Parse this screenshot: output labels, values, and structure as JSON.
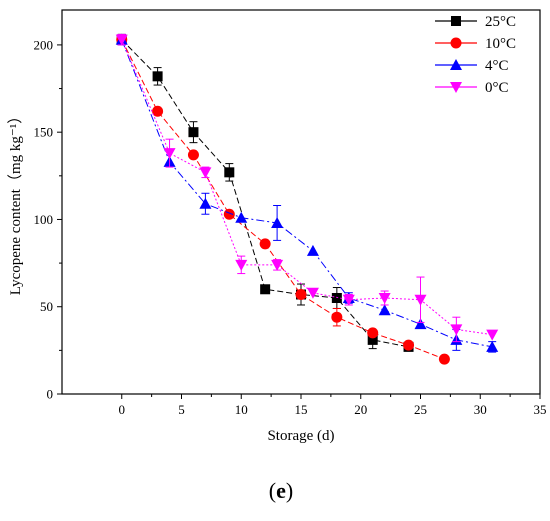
{
  "chart_data": {
    "type": "line",
    "xlabel": "Storage (d)",
    "ylabel": "Lycopene content（mg kg⁻¹）",
    "xlim": [
      -5,
      35
    ],
    "ylim": [
      0,
      220
    ],
    "xticks": [
      0,
      5,
      10,
      15,
      20,
      25,
      30,
      35
    ],
    "yticks": [
      0,
      50,
      100,
      150,
      200
    ],
    "grid": false,
    "legend_position": "top-right",
    "panel_label": {
      "open": "(",
      "letter": "e",
      "close": ")"
    },
    "series": [
      {
        "name": "25°C",
        "marker": "square",
        "color": "#000000",
        "x": [
          0,
          3,
          6,
          9,
          12,
          15,
          18,
          21,
          24
        ],
        "y": [
          203,
          182,
          150,
          127,
          60,
          57,
          55,
          31,
          27
        ],
        "err": [
          3,
          5,
          6,
          5,
          0,
          6,
          6,
          5,
          0
        ]
      },
      {
        "name": "10°C",
        "marker": "circle",
        "color": "#ff0000",
        "x": [
          0,
          3,
          6,
          9,
          12,
          15,
          18,
          21,
          24,
          27
        ],
        "y": [
          203,
          162,
          137,
          103,
          86,
          57,
          44,
          35,
          28,
          20
        ],
        "err": [
          3,
          0,
          0,
          0,
          0,
          0,
          5,
          0,
          0,
          0
        ]
      },
      {
        "name": "4°C",
        "marker": "triangle-up",
        "color": "#0000ff",
        "x": [
          0,
          4,
          7,
          10,
          13,
          16,
          19,
          22,
          25,
          28,
          31
        ],
        "y": [
          203,
          133,
          109,
          101,
          98,
          82,
          55,
          48,
          40,
          31,
          27
        ],
        "err": [
          3,
          0,
          6,
          0,
          10,
          0,
          3,
          0,
          0,
          6,
          3
        ]
      },
      {
        "name": "0°C",
        "marker": "triangle-down",
        "color": "#ff00ff",
        "x": [
          0,
          4,
          7,
          10,
          13,
          16,
          19,
          22,
          25,
          28,
          31
        ],
        "y": [
          203,
          138,
          127,
          74,
          74,
          58,
          54,
          55,
          54,
          37,
          34
        ],
        "err": [
          3,
          8,
          3,
          5,
          3,
          0,
          3,
          4,
          13,
          7,
          0
        ]
      }
    ]
  }
}
